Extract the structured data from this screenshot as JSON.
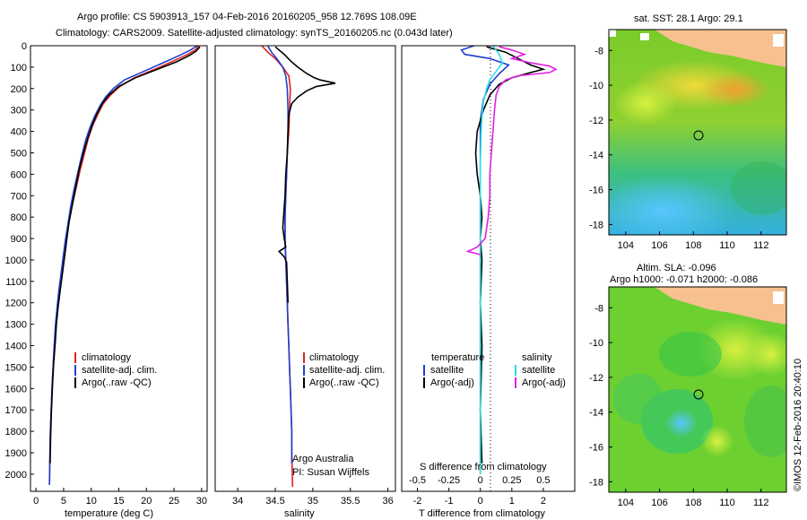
{
  "title_line1": "Argo profile: CS 5903913_157 04-Feb-2016 20160205_958 12.769S 108.09E",
  "title_line2": "Climatology: CARS2009. Satellite-adjusted climatology: synTS_20160205.nc (0.043d later)",
  "footer_stamp": "©IMOS 12-Feb-2016 20:40:10",
  "colors": {
    "climatology": "#e02020",
    "satellite": "#1f3fd0",
    "argo": "#000000",
    "sat_salinity": "#28e0e6",
    "argo_adj_salinity": "#e020e0"
  },
  "chart_data": [
    {
      "type": "line",
      "id": "temperature",
      "xlabel": "temperature (deg C)",
      "xlim": [
        -1,
        31
      ],
      "ylim": [
        2080,
        0
      ],
      "xticks": [
        0,
        5,
        10,
        15,
        20,
        25,
        30
      ],
      "yticks": [
        0,
        100,
        200,
        300,
        400,
        500,
        600,
        700,
        800,
        900,
        1000,
        1100,
        1200,
        1300,
        1400,
        1500,
        1600,
        1700,
        1800,
        1900,
        2000
      ],
      "legend": [
        "climatology",
        "satellite-adj. clim.",
        "Argo(..raw -QC)"
      ],
      "series": [
        {
          "name": "climatology",
          "color_key": "climatology",
          "x": [
            29.5,
            28.8,
            27.5,
            25.0,
            21.5,
            17.8,
            15.2,
            13.5,
            12.2,
            11.2,
            10.3,
            9.5,
            8.8,
            8.0,
            7.3,
            6.6,
            6.0,
            5.5,
            5.0,
            4.6,
            4.2,
            3.9,
            3.6,
            3.3,
            3.1,
            2.9,
            2.75,
            2.6,
            2.5,
            2.45
          ],
          "y": [
            0,
            20,
            40,
            70,
            110,
            150,
            190,
            230,
            270,
            320,
            370,
            430,
            500,
            580,
            660,
            740,
            820,
            900,
            980,
            1060,
            1140,
            1220,
            1300,
            1400,
            1500,
            1600,
            1700,
            1800,
            1950,
            2050
          ]
        },
        {
          "name": "satellite-adj. clim.",
          "color_key": "satellite",
          "x": [
            29.2,
            28.0,
            26.0,
            23.0,
            19.5,
            16.0,
            14.0,
            12.6,
            11.6,
            10.6,
            9.8,
            9.0,
            8.3,
            7.6,
            6.9,
            6.3,
            5.8,
            5.3,
            4.9,
            4.5,
            4.1,
            3.8,
            3.5,
            3.3,
            3.1,
            2.9,
            2.75,
            2.6,
            2.5,
            2.45
          ],
          "y": [
            0,
            20,
            45,
            80,
            120,
            160,
            200,
            240,
            280,
            330,
            380,
            440,
            510,
            590,
            670,
            750,
            830,
            910,
            990,
            1070,
            1150,
            1230,
            1310,
            1400,
            1500,
            1600,
            1700,
            1800,
            1950,
            2050
          ]
        },
        {
          "name": "Argo(..raw -QC)",
          "color_key": "argo",
          "x": [
            29.7,
            29.0,
            27.8,
            25.5,
            22.0,
            18.0,
            15.0,
            13.2,
            12.0,
            11.0,
            10.2,
            9.4,
            8.6,
            7.8,
            7.2,
            6.6,
            6.0,
            5.6,
            5.2,
            4.8,
            4.4,
            4.0,
            3.7,
            3.5,
            3.2,
            3.0,
            2.8,
            2.65,
            2.55
          ],
          "y": [
            5,
            25,
            45,
            75,
            110,
            150,
            190,
            230,
            270,
            320,
            370,
            430,
            500,
            580,
            660,
            740,
            820,
            900,
            980,
            1060,
            1140,
            1220,
            1300,
            1380,
            1480,
            1580,
            1700,
            1820,
            1950
          ]
        }
      ]
    },
    {
      "type": "line",
      "id": "salinity",
      "xlabel": "salinity",
      "xlim": [
        33.7,
        36.1
      ],
      "ylim": [
        2080,
        0
      ],
      "xticks": [
        34,
        34.5,
        35,
        35.5,
        36
      ],
      "legend": [
        "climatology",
        "satellite-adj. clim.",
        "Argo(..raw -QC)"
      ],
      "annotations": [
        "Argo Australia",
        "PI: Susan Wijffels"
      ],
      "series": [
        {
          "name": "climatology",
          "color_key": "climatology",
          "x": [
            34.32,
            34.4,
            34.5,
            34.6,
            34.68,
            34.7,
            34.69,
            34.68,
            34.66,
            34.65,
            34.64,
            34.63,
            34.63,
            34.64,
            34.65,
            34.66,
            34.67,
            34.68,
            34.69,
            34.7,
            34.71,
            34.72,
            34.72,
            34.73
          ],
          "y": [
            0,
            30,
            60,
            100,
            140,
            200,
            300,
            400,
            500,
            600,
            700,
            800,
            900,
            1000,
            1100,
            1200,
            1300,
            1400,
            1500,
            1600,
            1700,
            1800,
            1900,
            2060
          ]
        },
        {
          "name": "satellite-adj. clim.",
          "color_key": "satellite",
          "x": [
            34.4,
            34.45,
            34.52,
            34.6,
            34.64,
            34.66,
            34.67,
            34.67,
            34.66,
            34.65,
            34.64,
            34.63,
            34.63,
            34.64,
            34.65,
            34.66,
            34.67,
            34.68,
            34.69,
            34.7,
            34.71,
            34.72,
            34.72
          ],
          "y": [
            0,
            30,
            60,
            100,
            140,
            200,
            300,
            400,
            500,
            600,
            700,
            800,
            900,
            1000,
            1100,
            1200,
            1300,
            1400,
            1500,
            1600,
            1700,
            1800,
            1950
          ]
        },
        {
          "name": "Argo(..raw -QC)",
          "color_key": "argo",
          "x": [
            34.5,
            34.55,
            34.62,
            34.7,
            34.8,
            34.92,
            35.02,
            35.1,
            35.3,
            35.05,
            34.92,
            34.8,
            34.72,
            34.68,
            34.67,
            34.66,
            34.64,
            34.63,
            34.6,
            34.62,
            34.64,
            34.55,
            34.62,
            34.65,
            34.66,
            34.67
          ],
          "y": [
            5,
            20,
            40,
            70,
            100,
            130,
            150,
            160,
            175,
            190,
            210,
            240,
            270,
            320,
            400,
            500,
            600,
            700,
            850,
            900,
            940,
            960,
            985,
            1010,
            1100,
            1200
          ]
        }
      ]
    },
    {
      "type": "line",
      "id": "difference",
      "xlabel": "T difference from climatology",
      "xlabel2": "S difference from climatology",
      "xlim": [
        -2.5,
        3.0
      ],
      "ylim": [
        2080,
        0
      ],
      "xticks": [
        -2,
        -1,
        0,
        1,
        2
      ],
      "xticks2": [
        -0.5,
        -0.25,
        0,
        0.25,
        0.5
      ],
      "legend_left_title": "temperature",
      "legend_right_title": "salinity",
      "legend": [
        "satellite",
        "Argo(-adj)",
        "satellite",
        "Argo(-adj)"
      ],
      "series": [
        {
          "name": "T satellite",
          "color_key": "satellite",
          "x": [
            -0.2,
            -0.6,
            -0.5,
            0.3,
            0.9,
            0.6,
            0.3,
            0.1,
            0.0,
            0.0,
            0.0,
            0.0,
            0.0,
            0.0,
            0.0,
            0.0,
            0.0
          ],
          "y": [
            0,
            20,
            40,
            60,
            90,
            130,
            180,
            250,
            350,
            500,
            700,
            900,
            1100,
            1300,
            1500,
            1700,
            2000
          ]
        },
        {
          "name": "T Argo",
          "color_key": "argo",
          "x": [
            0.2,
            0.8,
            1.2,
            1.6,
            2.0,
            1.6,
            1.0,
            0.6,
            0.3,
            0.1,
            -0.1,
            -0.15,
            -0.1,
            0.0,
            0.05,
            0.0,
            0.05,
            0.0,
            0.05,
            0.0,
            0.05
          ],
          "y": [
            5,
            30,
            60,
            90,
            110,
            125,
            150,
            180,
            230,
            300,
            400,
            500,
            600,
            700,
            800,
            900,
            1000,
            1200,
            1400,
            1700,
            1950
          ]
        },
        {
          "name": "S satellite",
          "color_key": "sat_salinity",
          "x": [
            0.4,
            0.6,
            0.7,
            0.5,
            0.3,
            0.2,
            0.1,
            0.05,
            0.02,
            0.0,
            0.0,
            0.0,
            0.0,
            0.0,
            0.0,
            0.0
          ],
          "y": [
            0,
            40,
            80,
            120,
            160,
            200,
            260,
            330,
            420,
            550,
            700,
            900,
            1100,
            1400,
            1700,
            2000
          ]
        },
        {
          "name": "S Argo",
          "color_key": "argo_adj_salinity",
          "x": [
            0.6,
            1.0,
            1.4,
            1.0,
            1.6,
            2.2,
            2.4,
            2.2,
            1.2,
            0.8,
            0.6,
            0.5,
            0.45,
            0.4,
            0.35,
            0.3,
            0.3,
            0.25,
            0.15,
            -0.1,
            -0.4,
            0.0
          ],
          "y": [
            5,
            20,
            40,
            60,
            80,
            95,
            110,
            125,
            140,
            160,
            190,
            230,
            300,
            400,
            500,
            600,
            700,
            800,
            900,
            940,
            960,
            975
          ]
        }
      ]
    },
    {
      "type": "heatmap",
      "id": "sst_map",
      "title": "sat. SST: 28.1  Argo: 29.1",
      "xlim": [
        103,
        113.5
      ],
      "ylim": [
        -18.6,
        -6.8
      ],
      "xticks": [
        104,
        106,
        108,
        110,
        112
      ],
      "yticks": [
        -8,
        -10,
        -12,
        -14,
        -16,
        -18
      ],
      "argo_position": [
        108.09,
        -12.769
      ]
    },
    {
      "type": "heatmap",
      "id": "sla_map",
      "title": "Altim. SLA: -0.096",
      "subtitle": "Argo h1000: -0.071 h2000: -0.086",
      "xlim": [
        103,
        113.5
      ],
      "ylim": [
        -18.6,
        -6.8
      ],
      "xticks": [
        104,
        106,
        108,
        110,
        112
      ],
      "yticks": [
        -8,
        -10,
        -12,
        -14,
        -16,
        -18
      ],
      "argo_position": [
        108.09,
        -12.769
      ]
    }
  ]
}
